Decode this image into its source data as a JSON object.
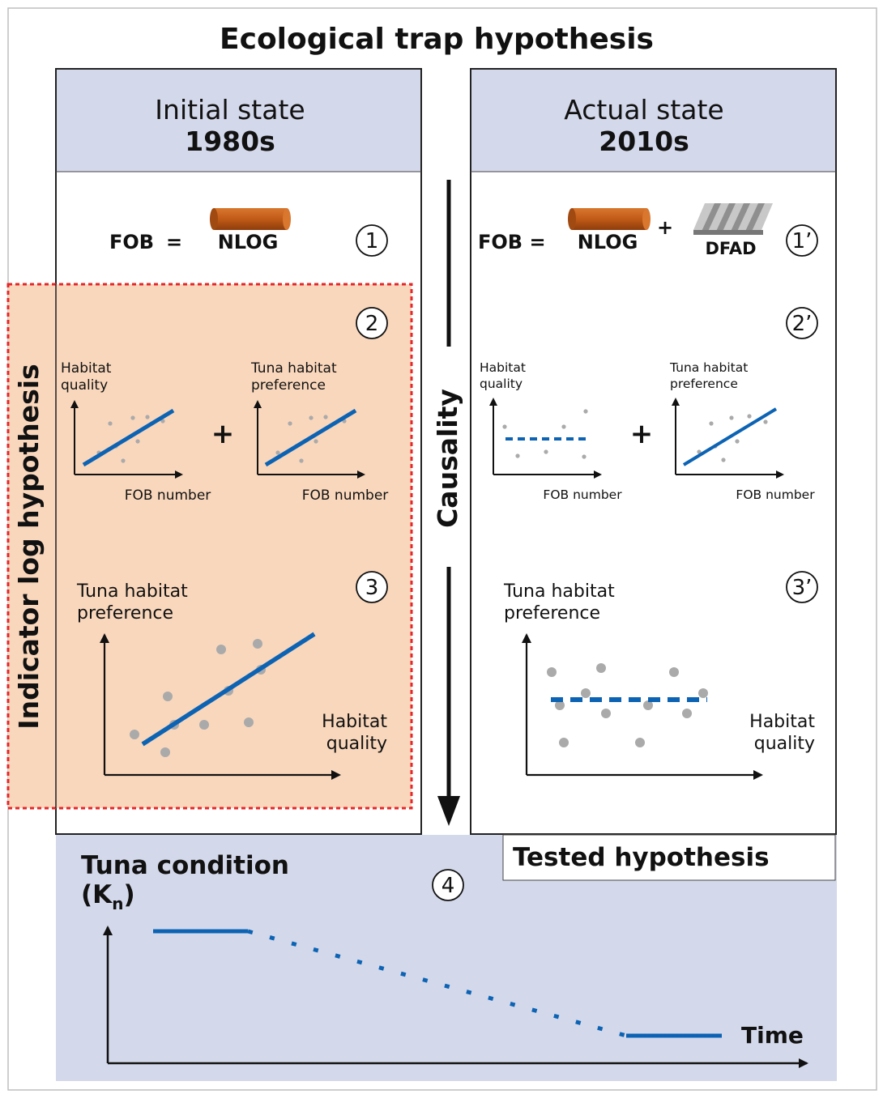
{
  "title": "Ecological trap hypothesis",
  "left_panel": {
    "header_line1": "Initial state",
    "header_line2": "1980s",
    "fob_label": "FOB",
    "equals": "=",
    "nlog_label": "NLOG",
    "step1": "1",
    "step2": "2",
    "step3": "3",
    "mini1": {
      "ylabel_line1": "Habitat",
      "ylabel_line2": "quality",
      "xlabel": "FOB number"
    },
    "plus": "+",
    "mini2": {
      "ylabel_line1": "Tuna habitat",
      "ylabel_line2": "preference",
      "xlabel": "FOB number"
    },
    "big": {
      "ylabel_line1": "Tuna habitat",
      "ylabel_line2": "preference",
      "xlabel_line1": "Habitat",
      "xlabel_line2": "quality"
    }
  },
  "right_panel": {
    "header_line1": "Actual state",
    "header_line2": "2010s",
    "fob_label": "FOB =",
    "nlog_label": "NLOG",
    "plus_top": "+",
    "dfad_label": "DFAD",
    "step1": "1’",
    "step2": "2’",
    "step3": "3’",
    "mini1": {
      "ylabel_line1": "Habitat",
      "ylabel_line2": "quality",
      "xlabel": "FOB number"
    },
    "plus": "+",
    "mini2": {
      "ylabel_line1": "Tuna habitat",
      "ylabel_line2": "preference",
      "xlabel": "FOB number"
    },
    "big": {
      "ylabel_line1": "Tuna habitat",
      "ylabel_line2": "preference",
      "xlabel_line1": "Habitat",
      "xlabel_line2": "quality"
    }
  },
  "center_label": "Causality",
  "side_label": "Indicator log hypothesis",
  "tested_hypothesis": "Tested hypothesis",
  "bottom": {
    "title_line1": "Tuna condition",
    "kn_open": "(K",
    "kn_sub": "n",
    "kn_close": ")",
    "step4": "4",
    "xlabel": "Time"
  },
  "colors": {
    "panel_header": "#d3d8ea",
    "bottom_panel": "#d3d8ea",
    "highlight_fill": "#f9d5b8",
    "highlight_border": "#e5262a",
    "trend_line": "#0c63b4",
    "points": "#aaaaaa",
    "log": "#c05a17"
  }
}
